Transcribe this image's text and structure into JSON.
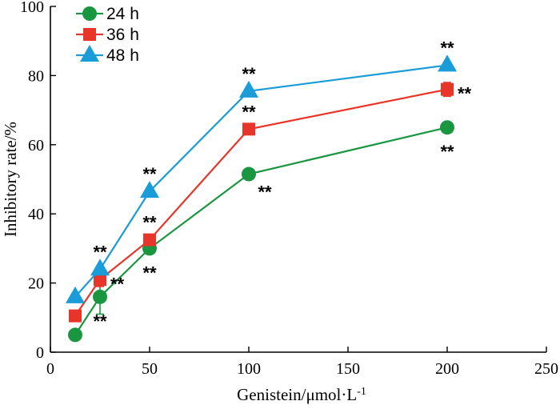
{
  "chart_data": {
    "type": "line",
    "xlabel": "Genistein/μmol·L",
    "xlabel_superscript": "-1",
    "ylabel": "Inhibitory rate/%",
    "xlim": [
      0,
      250
    ],
    "ylim": [
      0,
      100
    ],
    "xticks": [
      0,
      50,
      100,
      150,
      200,
      250
    ],
    "yticks": [
      0,
      20,
      40,
      60,
      80,
      100
    ],
    "x": [
      12.5,
      25,
      50,
      100,
      200
    ],
    "series": [
      {
        "name": "24 h",
        "marker": "circle",
        "color": "#1a9641",
        "values": [
          5,
          16,
          30,
          51.5,
          65
        ],
        "errors": [
          0,
          5,
          1.5,
          1,
          1
        ],
        "significance": [
          "",
          "**",
          "**",
          "**",
          "**"
        ],
        "sig_position": [
          "",
          "below",
          "below",
          "below-right",
          "below"
        ]
      },
      {
        "name": "36 h",
        "marker": "square",
        "color": "#e8352a",
        "values": [
          10.5,
          21,
          32.5,
          64.5,
          76
        ],
        "errors": [
          0,
          2,
          1.5,
          1.5,
          2
        ],
        "significance": [
          "",
          "**",
          "**",
          "**",
          "**"
        ],
        "sig_position": [
          "",
          "right",
          "above",
          "above",
          "right"
        ]
      },
      {
        "name": "48 h",
        "marker": "triangle",
        "color": "#1a9cd8",
        "values": [
          16,
          24,
          46.5,
          75.5,
          83
        ],
        "errors": [
          0,
          0,
          0,
          0,
          0
        ],
        "significance": [
          "",
          "**",
          "**",
          "**",
          "**"
        ],
        "sig_position": [
          "",
          "above",
          "above",
          "above",
          "above"
        ]
      }
    ]
  }
}
